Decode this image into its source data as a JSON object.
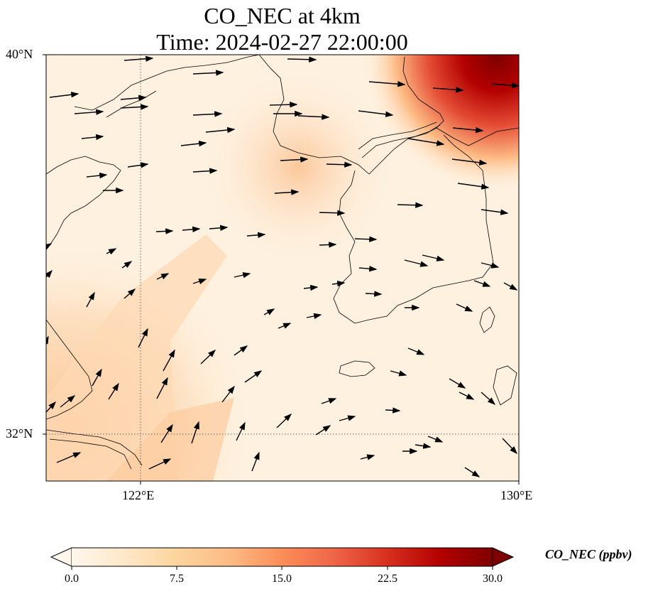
{
  "title": {
    "line1": "CO_NEC at 4km",
    "line2": "Time: 2024-02-27 22:00:00"
  },
  "axes": {
    "lat_ticks": [
      "40°N",
      "32°N"
    ],
    "lon_ticks": [
      "122°E",
      "130°E"
    ],
    "lon_range": [
      120,
      130
    ],
    "lat_range": [
      31,
      40
    ],
    "gridlines": "dotted"
  },
  "colorbar": {
    "label": "CO_NEC (ppbv)",
    "ticks": [
      "0.0",
      "7.5",
      "15.0",
      "22.5",
      "30.0"
    ],
    "range": [
      0,
      30
    ],
    "colormap": "OrRd",
    "extend": "both",
    "colors": [
      "#fff7ec",
      "#fee8c8",
      "#fdd49e",
      "#fdbb84",
      "#fc8d59",
      "#ef6548",
      "#d7301f",
      "#b30000",
      "#7f0000"
    ]
  },
  "colors": {
    "background_field": "#fef1df",
    "high_concentration": "#8b0000",
    "coastline": "#000000",
    "wind_arrow": "#000000"
  }
}
